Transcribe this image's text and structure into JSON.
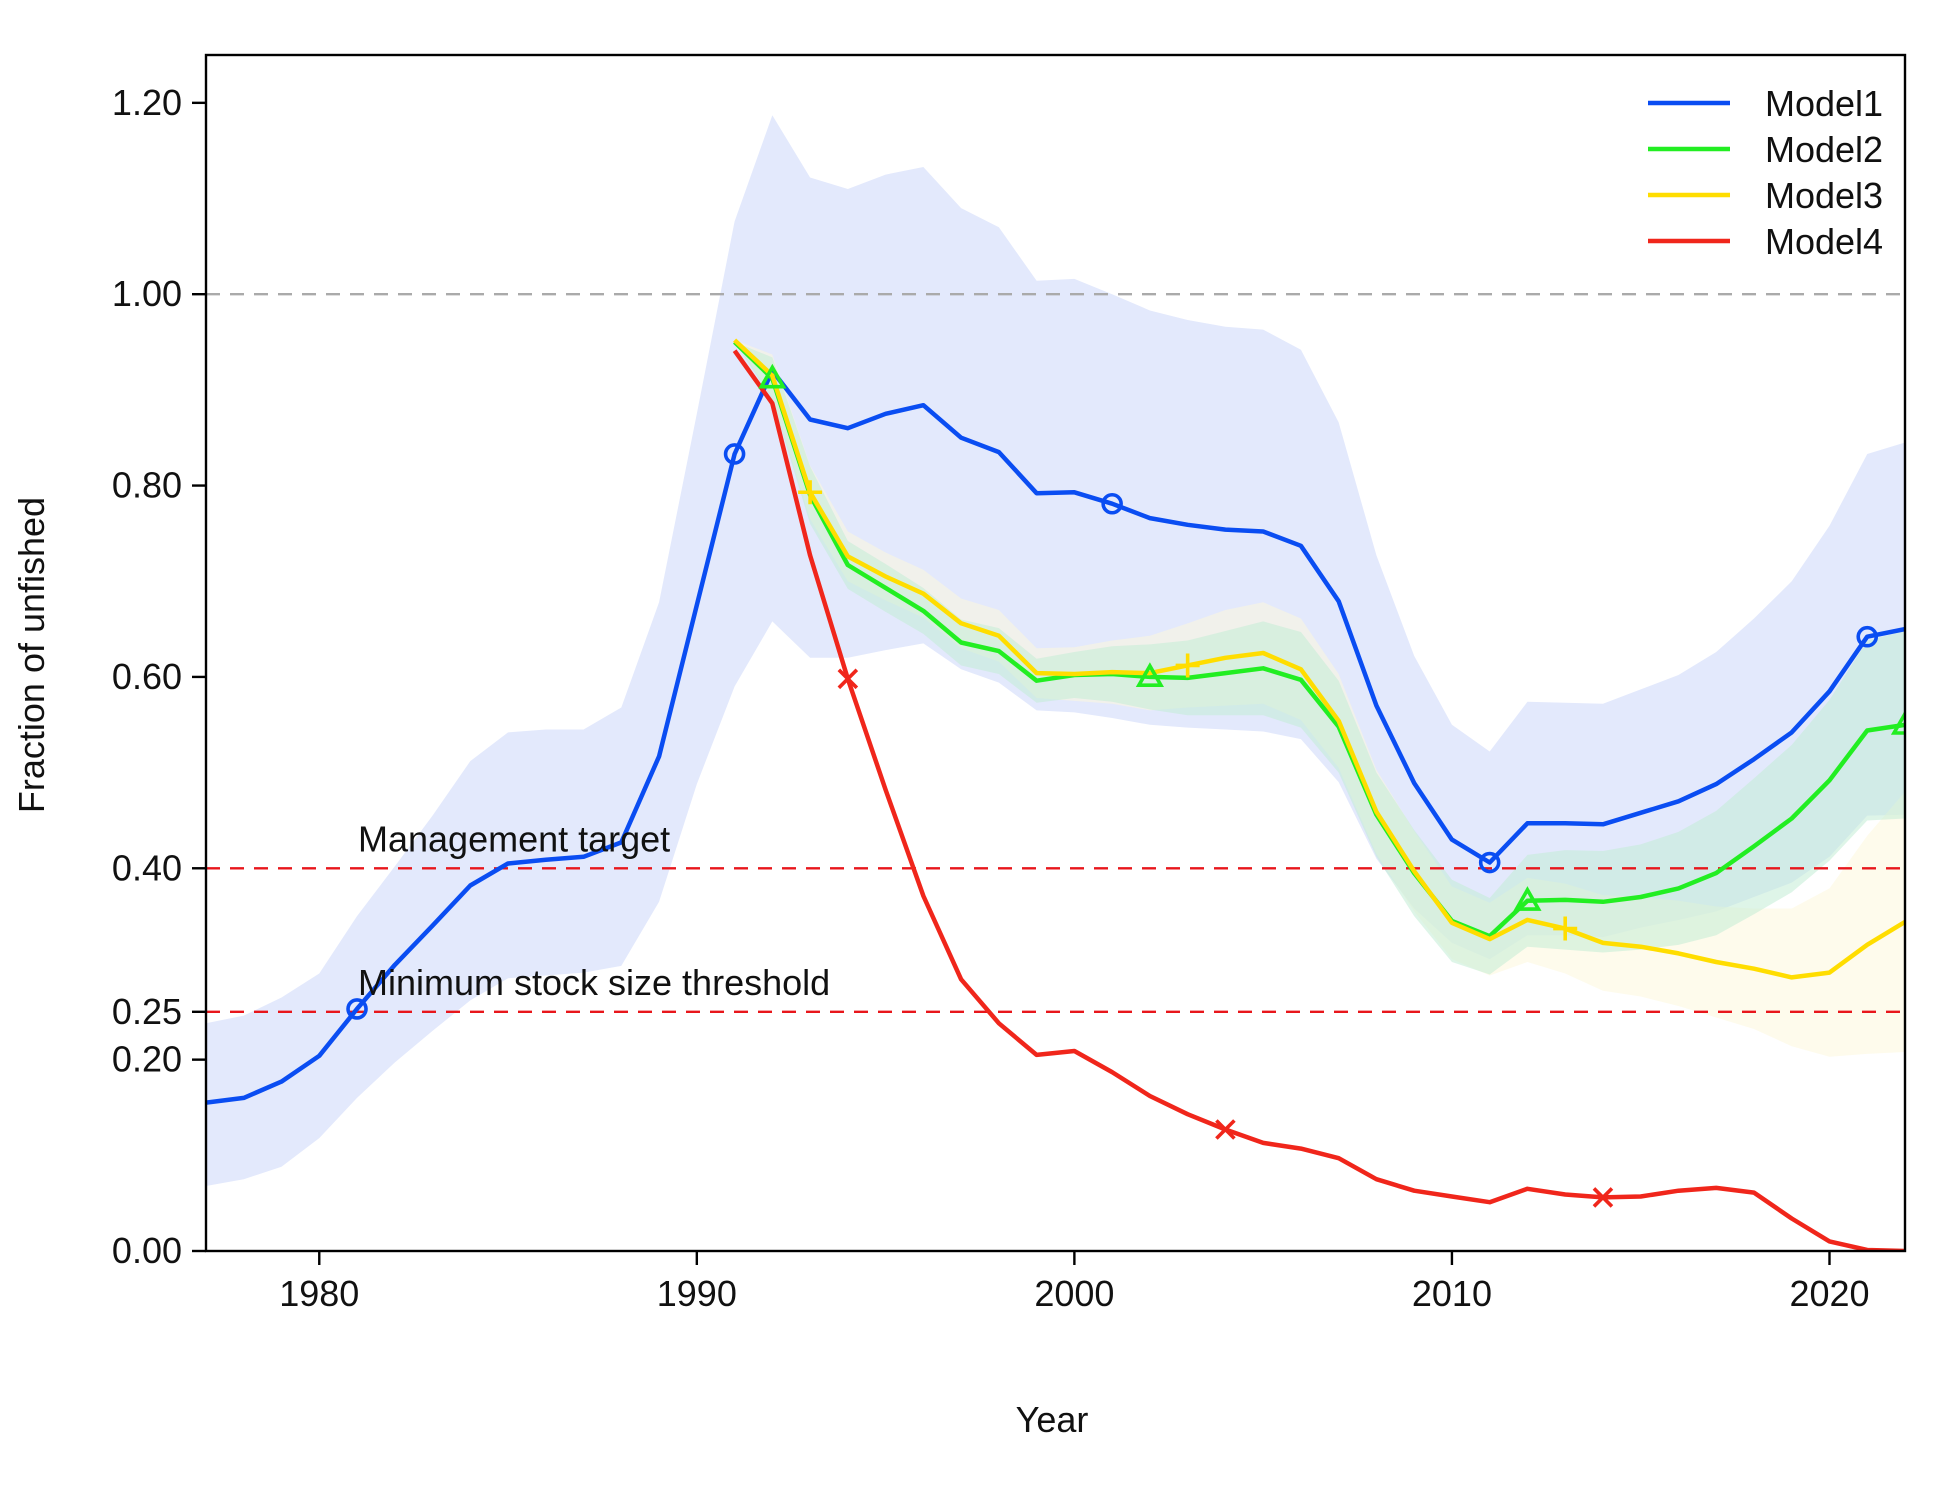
{
  "chart_data": {
    "type": "line",
    "xlabel": "Year",
    "ylabel": "Fraction of unfished",
    "xlim": [
      1977,
      2022
    ],
    "ylim": [
      0,
      1.25
    ],
    "x_ticks": [
      1980,
      1990,
      2000,
      2010,
      2020
    ],
    "y_ticks": [
      0.0,
      0.2,
      0.25,
      0.4,
      0.6,
      0.8,
      1.0,
      1.2
    ],
    "y_tick_labels": [
      "0.00",
      "0.20",
      "0.25",
      "0.40",
      "0.60",
      "0.80",
      "1.00",
      "1.20"
    ],
    "legend_position": "top-right",
    "reference_lines": [
      {
        "value": 1.0,
        "style": "dashed",
        "color": "#aaaaaa",
        "label": ""
      },
      {
        "value": 0.4,
        "style": "dashed",
        "color": "#e8161b",
        "label": "Management target"
      },
      {
        "value": 0.25,
        "style": "dashed",
        "color": "#e8161b",
        "label": "Minimum stock size threshold"
      }
    ],
    "series": [
      {
        "name": "Model1",
        "color": "#0a4df2",
        "band_color": "#e3e9fc",
        "marker": "circle",
        "marker_years": [
          1981,
          1991,
          2001,
          2011,
          2021
        ],
        "x": [
          1977,
          1978,
          1979,
          1980,
          1981,
          1982,
          1983,
          1984,
          1985,
          1986,
          1987,
          1988,
          1989,
          1990,
          1991,
          1992,
          1993,
          1994,
          1995,
          1996,
          1997,
          1998,
          1999,
          2000,
          2001,
          2002,
          2003,
          2004,
          2005,
          2006,
          2007,
          2008,
          2009,
          2010,
          2011,
          2012,
          2013,
          2014,
          2015,
          2016,
          2017,
          2018,
          2019,
          2020,
          2021,
          2022
        ],
        "values": [
          0.155,
          0.16,
          0.177,
          0.204,
          0.253,
          0.299,
          0.34,
          0.382,
          0.405,
          0.409,
          0.412,
          0.427,
          0.517,
          0.675,
          0.833,
          0.92,
          0.869,
          0.86,
          0.875,
          0.884,
          0.85,
          0.835,
          0.792,
          0.793,
          0.781,
          0.766,
          0.759,
          0.754,
          0.752,
          0.737,
          0.679,
          0.57,
          0.489,
          0.43,
          0.406,
          0.447,
          0.447,
          0.446,
          0.458,
          0.47,
          0.488,
          0.514,
          0.542,
          0.585,
          0.642,
          0.65
        ],
        "lower": [
          0.068,
          0.075,
          0.088,
          0.118,
          0.16,
          0.197,
          0.23,
          0.262,
          0.285,
          0.288,
          0.291,
          0.298,
          0.365,
          0.488,
          0.59,
          0.658,
          0.62,
          0.62,
          0.628,
          0.635,
          0.608,
          0.594,
          0.565,
          0.563,
          0.557,
          0.55,
          0.547,
          0.545,
          0.543,
          0.535,
          0.49,
          0.41,
          0.358,
          0.322,
          0.305,
          0.33,
          0.33,
          0.328,
          0.338,
          0.346,
          0.355,
          0.37,
          0.385,
          0.412,
          0.455,
          0.456
        ],
        "upper": [
          0.238,
          0.246,
          0.265,
          0.29,
          0.35,
          0.402,
          0.455,
          0.512,
          0.542,
          0.545,
          0.545,
          0.568,
          0.678,
          0.875,
          1.076,
          1.187,
          1.122,
          1.11,
          1.125,
          1.133,
          1.09,
          1.07,
          1.014,
          1.016,
          1.0,
          0.983,
          0.973,
          0.966,
          0.963,
          0.942,
          0.866,
          0.727,
          0.622,
          0.55,
          0.522,
          0.574,
          0.573,
          0.572,
          0.587,
          0.602,
          0.626,
          0.661,
          0.7,
          0.758,
          0.833,
          0.845
        ]
      },
      {
        "name": "Model2",
        "color": "#22ee22",
        "band_color": "#c2ecd6",
        "marker": "triangle",
        "marker_years": [
          1992,
          2002,
          2012,
          2022
        ],
        "x": [
          1991,
          1992,
          1993,
          1994,
          1995,
          1996,
          1997,
          1998,
          1999,
          2000,
          2001,
          2002,
          2003,
          2004,
          2005,
          2006,
          2007,
          2008,
          2009,
          2010,
          2011,
          2012,
          2013,
          2014,
          2015,
          2016,
          2017,
          2018,
          2019,
          2020,
          2021,
          2022
        ],
        "values": [
          0.95,
          0.912,
          0.79,
          0.717,
          0.693,
          0.669,
          0.636,
          0.627,
          0.596,
          0.602,
          0.603,
          0.6,
          0.599,
          0.604,
          0.609,
          0.597,
          0.548,
          0.456,
          0.395,
          0.345,
          0.329,
          0.366,
          0.367,
          0.365,
          0.37,
          0.379,
          0.395,
          0.423,
          0.452,
          0.492,
          0.544,
          0.55
        ],
        "lower": [
          0.95,
          0.89,
          0.76,
          0.692,
          0.668,
          0.645,
          0.612,
          0.603,
          0.573,
          0.578,
          0.574,
          0.566,
          0.56,
          0.56,
          0.56,
          0.547,
          0.5,
          0.412,
          0.35,
          0.302,
          0.289,
          0.318,
          0.315,
          0.312,
          0.315,
          0.32,
          0.33,
          0.352,
          0.375,
          0.408,
          0.45,
          0.452
        ],
        "upper": [
          0.95,
          0.934,
          0.82,
          0.742,
          0.718,
          0.693,
          0.66,
          0.651,
          0.619,
          0.626,
          0.632,
          0.634,
          0.638,
          0.648,
          0.658,
          0.647,
          0.596,
          0.5,
          0.44,
          0.388,
          0.369,
          0.414,
          0.419,
          0.418,
          0.425,
          0.438,
          0.46,
          0.494,
          0.529,
          0.576,
          0.638,
          0.648
        ]
      },
      {
        "name": "Model3",
        "color": "#ffdd00",
        "band_color": "#fdf8dc",
        "marker": "plus",
        "marker_years": [
          1993,
          2003,
          2013
        ],
        "x": [
          1991,
          1992,
          1993,
          1994,
          1995,
          1996,
          1997,
          1998,
          1999,
          2000,
          2001,
          2002,
          2003,
          2004,
          2005,
          2006,
          2007,
          2008,
          2009,
          2010,
          2011,
          2012,
          2013,
          2014,
          2015,
          2016,
          2017,
          2018,
          2019,
          2020,
          2021,
          2022
        ],
        "values": [
          0.952,
          0.915,
          0.793,
          0.726,
          0.705,
          0.687,
          0.656,
          0.643,
          0.604,
          0.603,
          0.605,
          0.604,
          0.612,
          0.62,
          0.625,
          0.608,
          0.554,
          0.459,
          0.397,
          0.343,
          0.326,
          0.346,
          0.337,
          0.322,
          0.318,
          0.311,
          0.302,
          0.295,
          0.286,
          0.291,
          0.32,
          0.344
        ],
        "lower": [
          0.952,
          0.893,
          0.765,
          0.7,
          0.68,
          0.662,
          0.63,
          0.616,
          0.578,
          0.575,
          0.572,
          0.565,
          0.568,
          0.57,
          0.572,
          0.555,
          0.505,
          0.415,
          0.355,
          0.305,
          0.288,
          0.302,
          0.29,
          0.272,
          0.266,
          0.256,
          0.244,
          0.232,
          0.214,
          0.203,
          0.206,
          0.208
        ],
        "upper": [
          0.952,
          0.937,
          0.821,
          0.752,
          0.73,
          0.712,
          0.682,
          0.67,
          0.63,
          0.631,
          0.638,
          0.643,
          0.656,
          0.67,
          0.678,
          0.661,
          0.603,
          0.503,
          0.439,
          0.381,
          0.364,
          0.39,
          0.384,
          0.372,
          0.37,
          0.366,
          0.36,
          0.358,
          0.358,
          0.379,
          0.434,
          0.48
        ]
      },
      {
        "name": "Model4",
        "color": "#f0261b",
        "band_color": "",
        "marker": "cross",
        "marker_years": [
          1994,
          2004,
          2014
        ],
        "x": [
          1991,
          1992,
          1993,
          1994,
          1995,
          1996,
          1997,
          1998,
          1999,
          2000,
          2001,
          2002,
          2003,
          2004,
          2005,
          2006,
          2007,
          2008,
          2009,
          2010,
          2011,
          2012,
          2013,
          2014,
          2015,
          2016,
          2017,
          2018,
          2019,
          2020,
          2021,
          2022
        ],
        "values": [
          0.941,
          0.886,
          0.727,
          0.598,
          0.482,
          0.371,
          0.284,
          0.238,
          0.205,
          0.209,
          0.187,
          0.162,
          0.143,
          0.127,
          0.113,
          0.107,
          0.097,
          0.075,
          0.063,
          0.057,
          0.051,
          0.065,
          0.059,
          0.056,
          0.057,
          0.063,
          0.066,
          0.061,
          0.034,
          0.01,
          0.001,
          0.0
        ]
      }
    ]
  }
}
